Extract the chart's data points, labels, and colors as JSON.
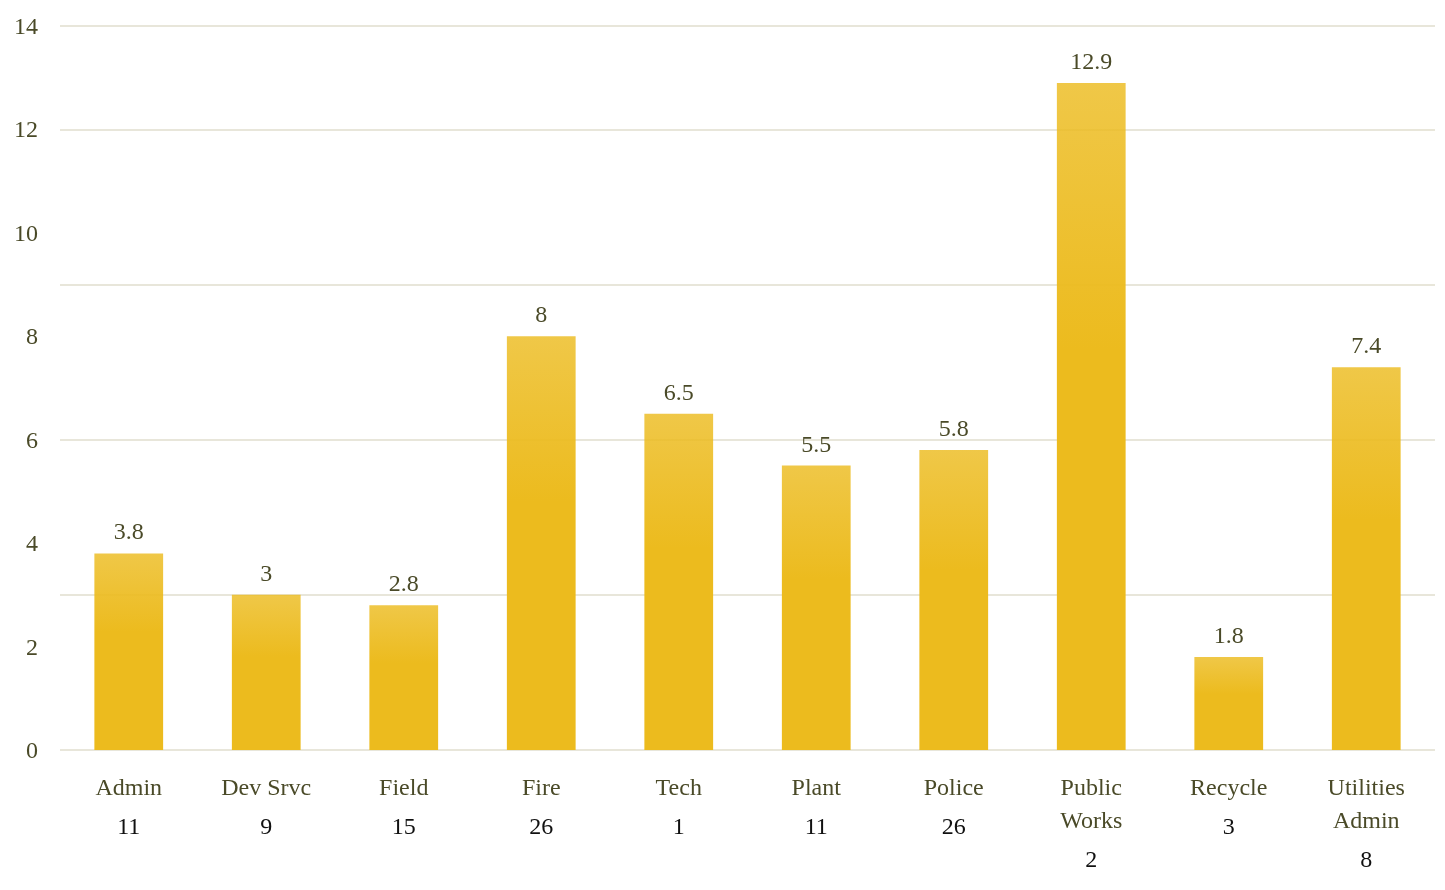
{
  "chart_data": {
    "type": "bar",
    "categories": [
      "Admin\n11",
      "Dev Srvc\n9",
      "Field\n15",
      "Fire\n26",
      "Tech\n1",
      "Plant\n11",
      "Police\n26",
      "Public\nWorks\n2",
      "Recycle\n3",
      "Utilities\nAdmin\n8"
    ],
    "values": [
      3.8,
      3,
      2.8,
      8,
      6.5,
      5.5,
      5.8,
      12.9,
      1.8,
      7.4
    ],
    "color": "#ecbb1e",
    "ylim": [
      0,
      14
    ],
    "yticks": [
      0,
      2,
      4,
      6,
      8,
      10,
      12,
      14
    ],
    "grid": "y",
    "data_labels": true
  }
}
